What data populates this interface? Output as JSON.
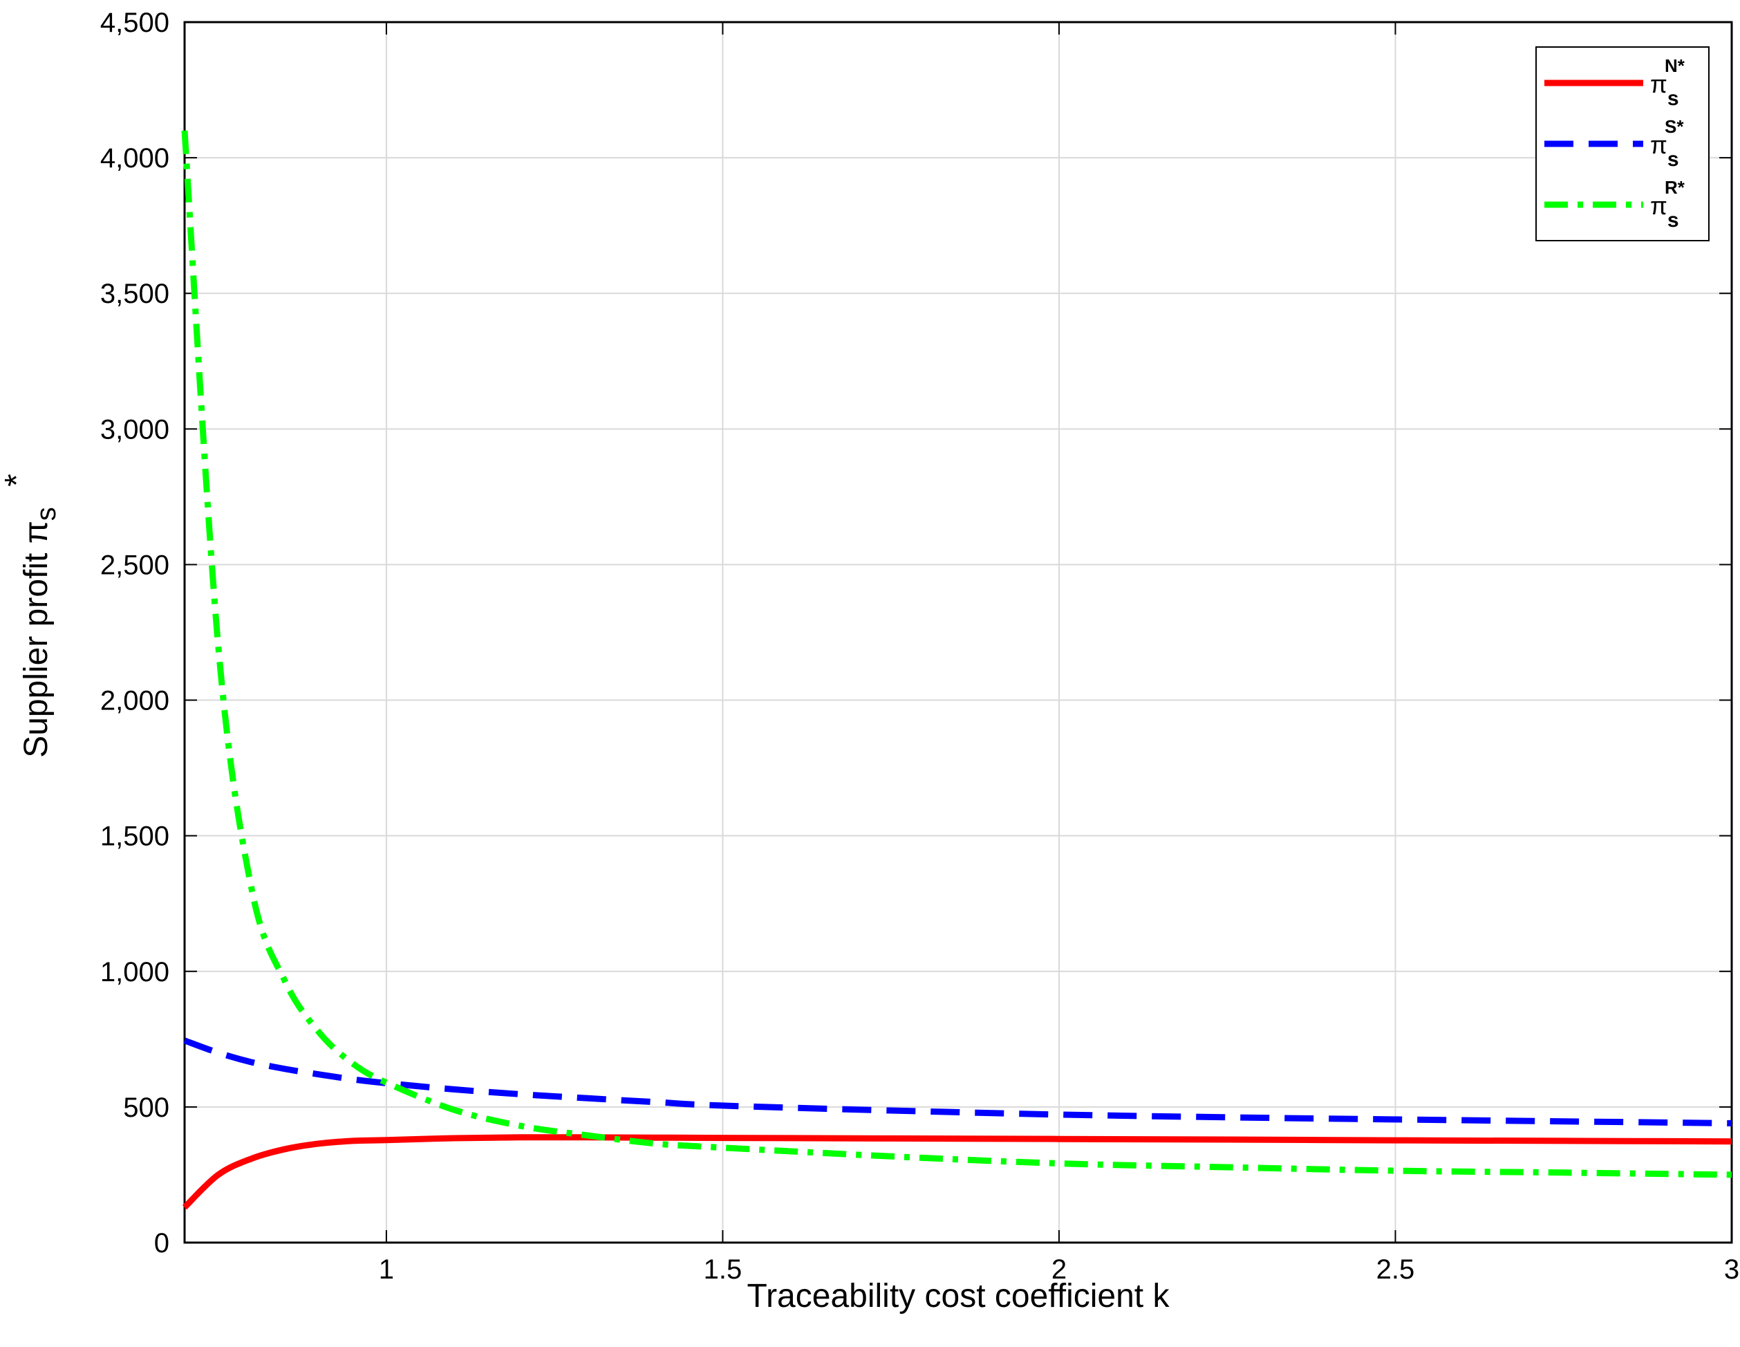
{
  "chart_data": {
    "type": "line",
    "title": "",
    "xlabel": "Traceability cost coefficient k",
    "ylabel": "Supplier profit π",
    "ylabel_sup": "*",
    "ylabel_sub": "s",
    "xlim": [
      0.7,
      3
    ],
    "ylim": [
      0,
      4500
    ],
    "xticks": [
      1,
      1.5,
      2,
      2.5,
      3
    ],
    "xtick_labels": [
      "1",
      "1.5",
      "2",
      "2.5",
      "3"
    ],
    "yticks": [
      0,
      500,
      1000,
      1500,
      2000,
      2500,
      3000,
      3500,
      4000,
      4500
    ],
    "ytick_labels": [
      "0",
      "500",
      "1,000",
      "1,500",
      "2,000",
      "2,500",
      "3,000",
      "3,500",
      "4,000",
      "4,500"
    ],
    "grid": true,
    "legend_position": "top-right",
    "x": [
      0.7,
      0.75,
      0.8,
      0.85,
      0.9,
      0.95,
      1.0,
      1.1,
      1.2,
      1.3,
      1.4,
      1.5,
      1.75,
      2.0,
      2.25,
      2.5,
      2.75,
      3.0
    ],
    "series": [
      {
        "name": "π",
        "legend_sup": "N*",
        "legend_sub": "s",
        "color": "#ff0000",
        "style": "solid",
        "values": [
          130,
          250,
          310,
          345,
          365,
          375,
          378,
          385,
          388,
          388,
          387,
          386,
          384,
          382,
          380,
          377,
          375,
          373
        ]
      },
      {
        "name": "π",
        "legend_sup": "S*",
        "legend_sub": "s",
        "color": "#0000ff",
        "style": "dashed",
        "values": [
          745,
          700,
          665,
          640,
          620,
          602,
          588,
          565,
          547,
          532,
          518,
          505,
          487,
          472,
          462,
          454,
          447,
          440
        ]
      },
      {
        "name": "π",
        "legend_sup": "R*",
        "legend_sub": "s",
        "color": "#00ff00",
        "style": "dashdot",
        "values": [
          4100,
          2200,
          1300,
          960,
          775,
          660,
          590,
          490,
          430,
          395,
          365,
          350,
          318,
          292,
          278,
          265,
          258,
          250
        ]
      }
    ]
  }
}
